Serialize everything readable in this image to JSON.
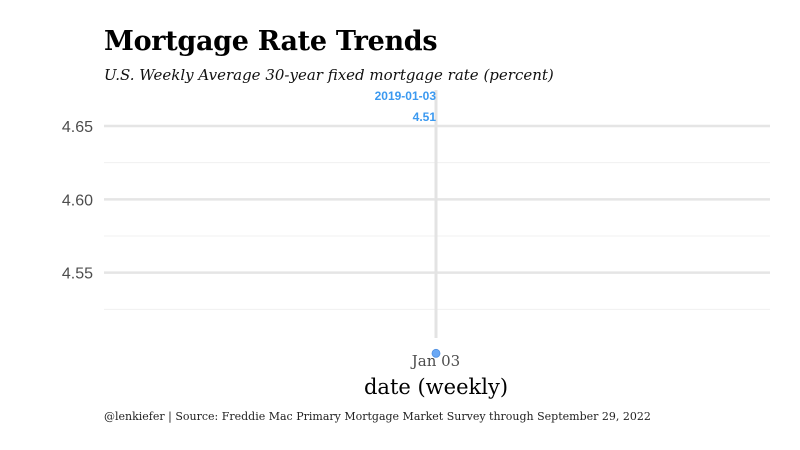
{
  "header": {
    "title": "Mortgage Rate Trends",
    "subtitle": "U.S. Weekly Average 30-year fixed mortgage rate (percent)"
  },
  "footer": {
    "caption": "@lenkiefer | Source: Freddie Mac Primary Mortgage Market Survey through September 29, 2022"
  },
  "colors": {
    "point": "#6aa8f5",
    "annotation": "#3b99f0",
    "grid_major": "#e5e5e5",
    "grid_minor": "#f0f0f0",
    "vline": "#e3e3e3"
  },
  "chart_data": {
    "type": "scatter",
    "title": "Mortgage Rate Trends",
    "subtitle": "U.S. Weekly Average 30-year fixed mortgage rate (percent)",
    "xlabel": "date (weekly)",
    "ylabel": "",
    "x": [
      "2019-01-03"
    ],
    "x_tick_labels": [
      "Jan 03"
    ],
    "values": [
      4.51
    ],
    "ylim": [
      4.5,
      4.68
    ],
    "y_ticks": [
      4.55,
      4.6,
      4.65
    ],
    "y_tick_labels": [
      "4.55",
      "4.60",
      "4.65"
    ],
    "grid": true,
    "annotations": [
      {
        "x": "2019-01-03",
        "date_label": "2019-01-03",
        "value_label": "4.51"
      }
    ]
  }
}
